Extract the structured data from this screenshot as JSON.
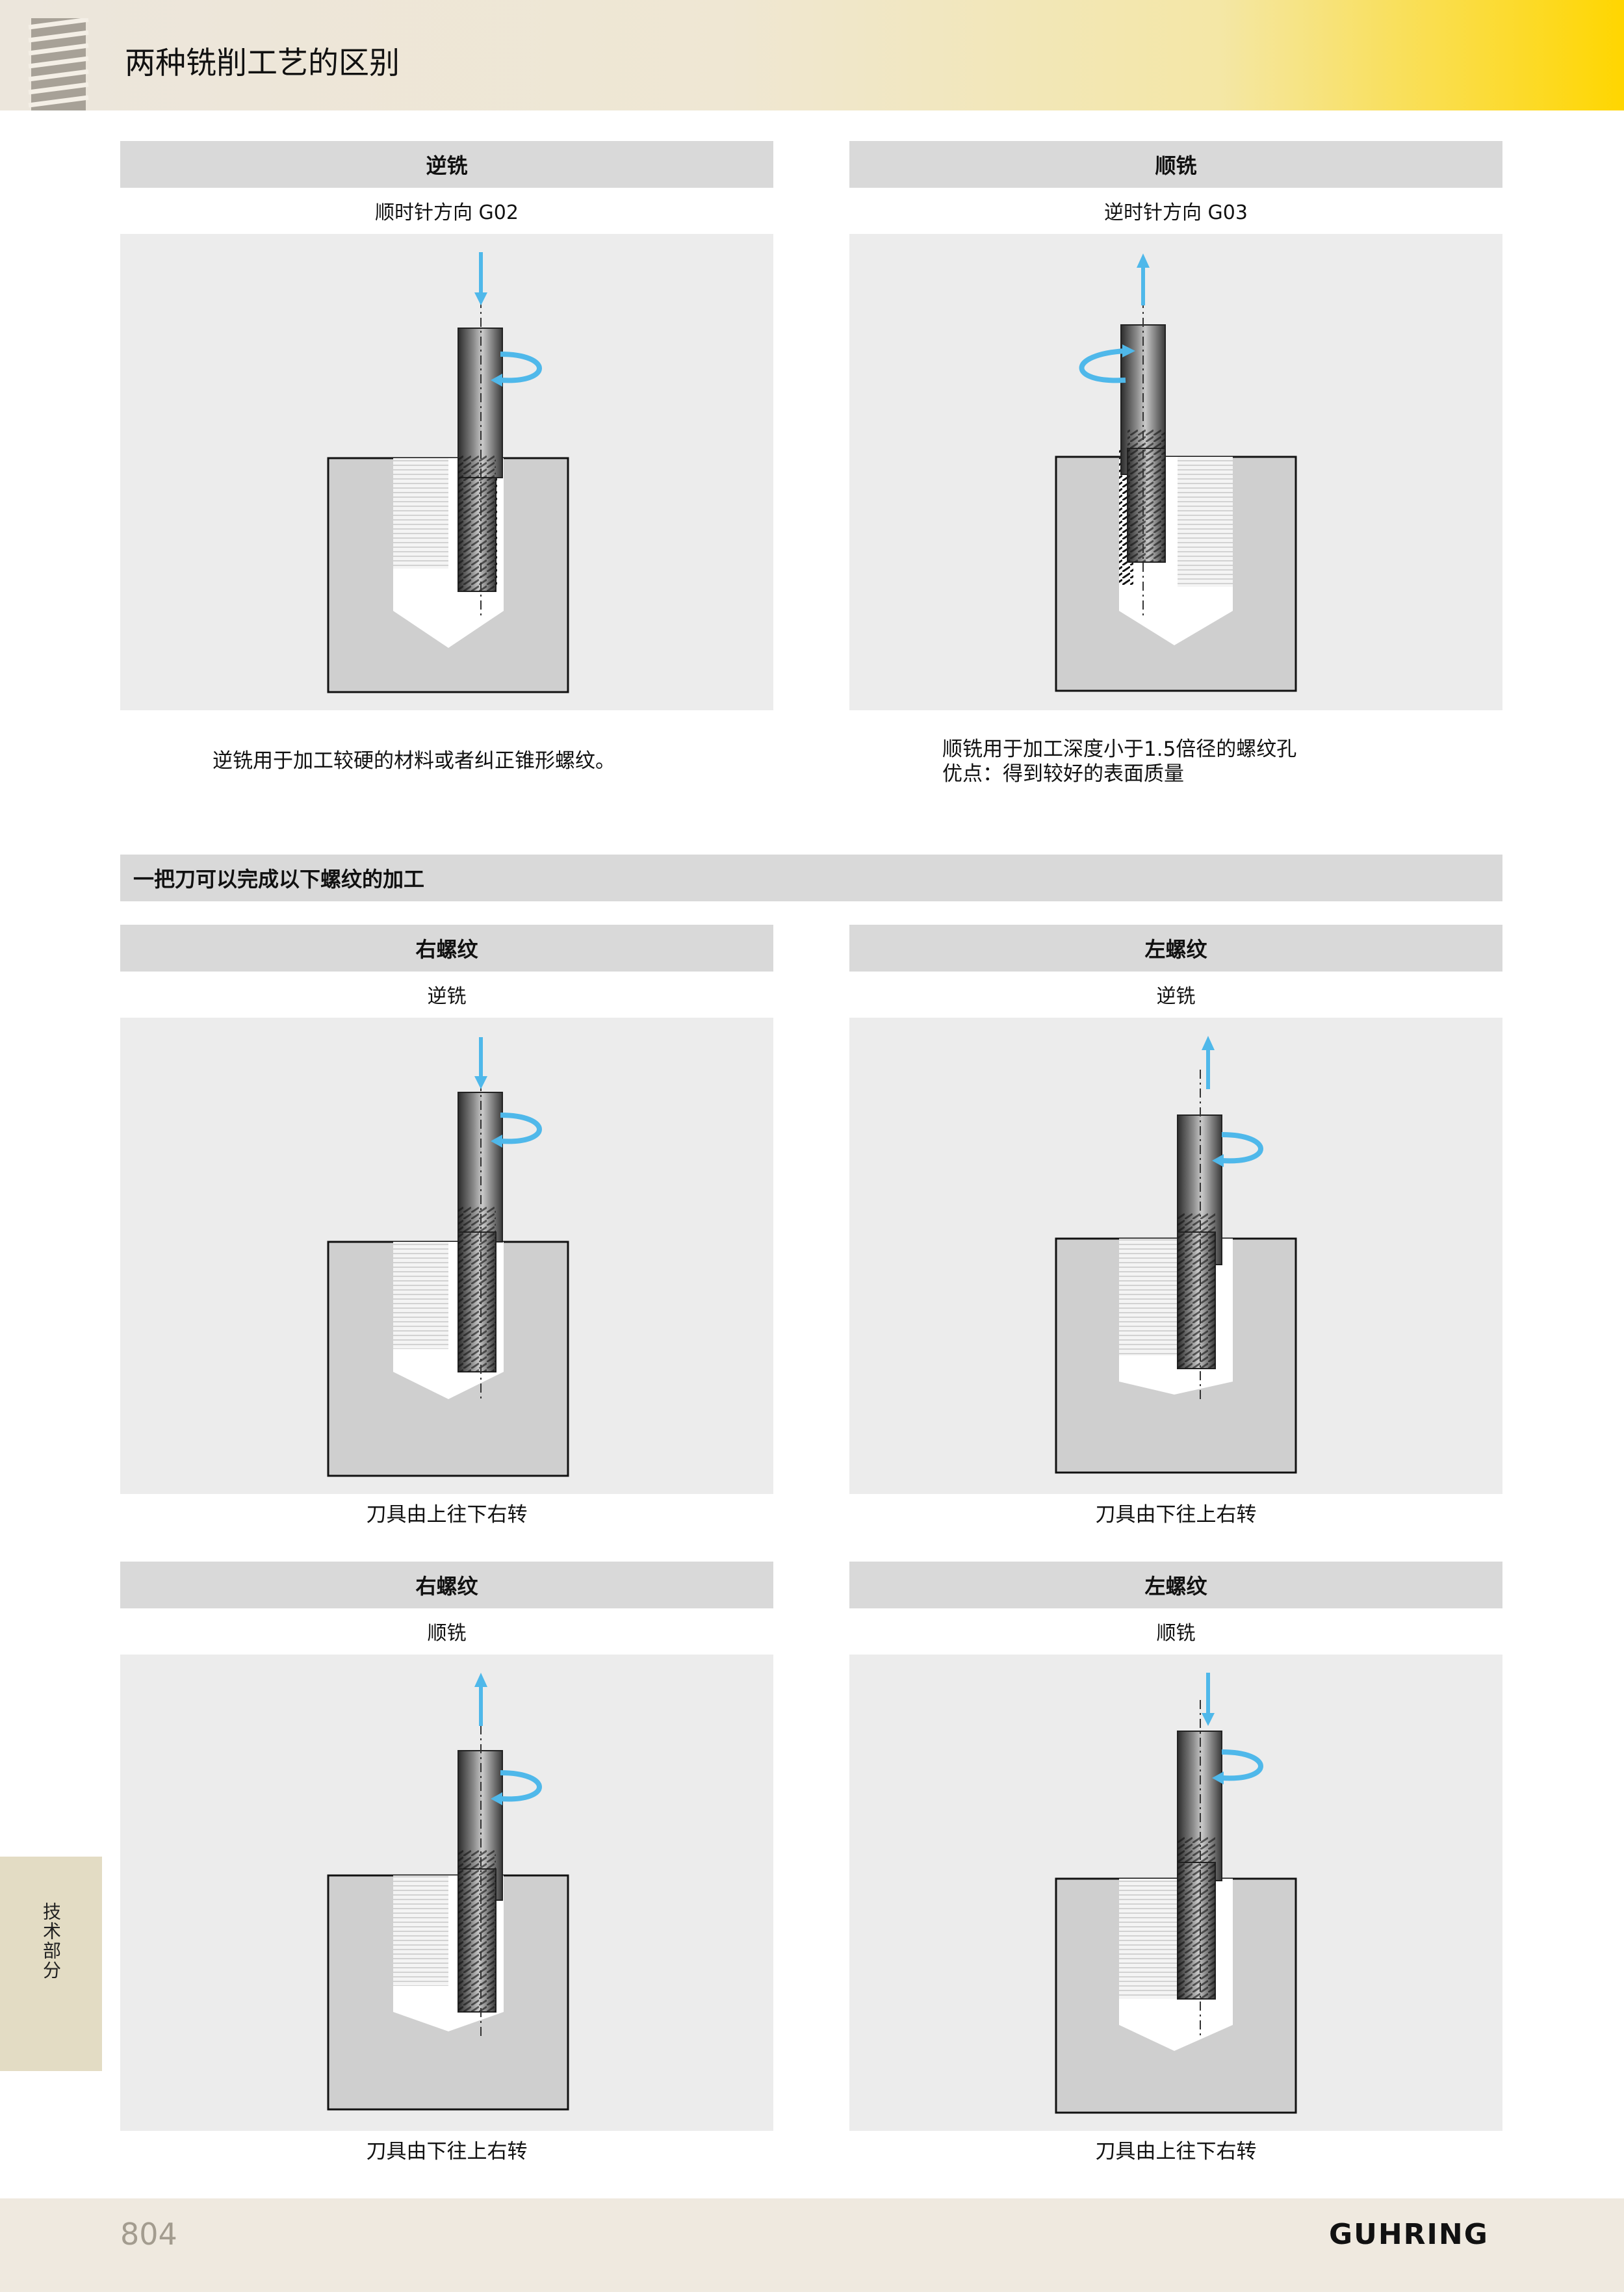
{
  "header": {
    "title": "两种铣削工艺的区别"
  },
  "section1": {
    "left": {
      "title": "逆铣",
      "subtitle": "顺时针方向 G02",
      "description_lines": [
        "逆铣用于加工较硬的材料或者纠正锥形螺纹。"
      ]
    },
    "right": {
      "title": "顺铣",
      "subtitle": "逆时针方向 G03",
      "description_lines": [
        "顺铣用于加工深度小于1.5倍径的螺纹孔",
        "优点：得到较好的表面质量"
      ]
    }
  },
  "section2": {
    "title": "一把刀可以完成以下螺纹的加工",
    "panels": [
      {
        "title": "右螺纹",
        "subtitle": "逆铣",
        "caption": "刀具由上往下右转"
      },
      {
        "title": "左螺纹",
        "subtitle": "逆铣",
        "caption": "刀具由下往上右转"
      },
      {
        "title": "右螺纹",
        "subtitle": "顺铣",
        "caption": "刀具由下往上右转"
      },
      {
        "title": "左螺纹",
        "subtitle": "顺铣",
        "caption": "刀具由上往下右转"
      }
    ]
  },
  "side_tab": {
    "label": "技术部分"
  },
  "footer": {
    "page_number": "804",
    "brand": "GUHRING"
  },
  "colors": {
    "arrow": "#4fb8ea",
    "block": "#cfcfcf",
    "panel": "#ececec",
    "bar": "#d9d9d9"
  }
}
